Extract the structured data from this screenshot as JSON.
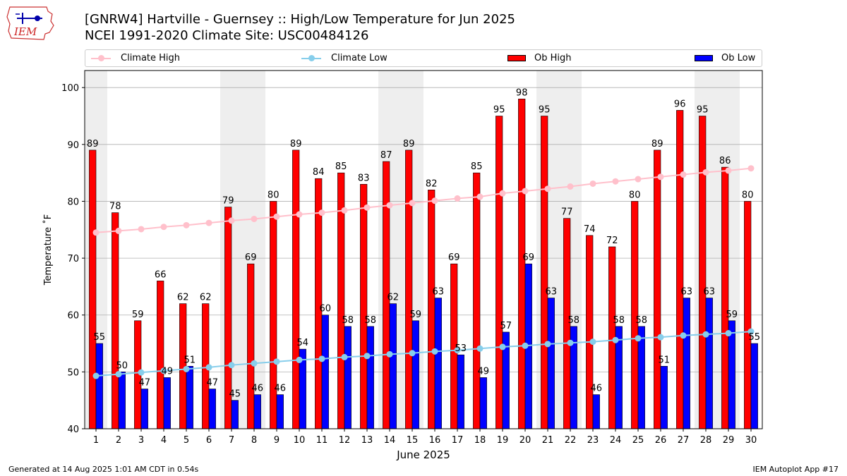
{
  "header": {
    "logo_text": "IEM",
    "title_line1": "[GNRW4] Hartville - Guernsey :: High/Low Temperature for Jun 2025",
    "title_line2": "NCEI 1991-2020 Climate Site: USC00484126"
  },
  "legend": {
    "climate_high": "Climate High",
    "climate_low": "Climate Low",
    "ob_high": "Ob High",
    "ob_low": "Ob Low"
  },
  "colors": {
    "ob_high": "#ff0000",
    "ob_low": "#0000ff",
    "climate_high": "#ffc0cb",
    "climate_low": "#87ceeb",
    "weekend_shade": "#eeeeee",
    "grid": "#b0b0b0"
  },
  "chart_data": {
    "type": "bar",
    "xlabel": "June 2025",
    "ylabel": "Temperature ˚F",
    "ylim": [
      40,
      103
    ],
    "yticks": [
      40,
      50,
      60,
      70,
      80,
      90,
      100
    ],
    "grid": "horizontal",
    "legend_position": "top",
    "categories": [
      "1",
      "2",
      "3",
      "4",
      "5",
      "6",
      "7",
      "8",
      "9",
      "10",
      "11",
      "12",
      "13",
      "14",
      "15",
      "16",
      "17",
      "18",
      "19",
      "20",
      "21",
      "22",
      "23",
      "24",
      "25",
      "26",
      "27",
      "28",
      "29",
      "30"
    ],
    "shaded_categories": [
      "1",
      "7",
      "8",
      "14",
      "15",
      "21",
      "22",
      "28",
      "29"
    ],
    "series": [
      {
        "name": "Ob High",
        "kind": "bar",
        "values": [
          89,
          78,
          59,
          66,
          62,
          62,
          79,
          69,
          80,
          89,
          84,
          85,
          83,
          87,
          89,
          82,
          69,
          85,
          95,
          98,
          95,
          77,
          74,
          72,
          80,
          89,
          96,
          95,
          86,
          80
        ]
      },
      {
        "name": "Ob Low",
        "kind": "bar",
        "values": [
          55,
          50,
          47,
          49,
          51,
          47,
          45,
          46,
          46,
          54,
          60,
          58,
          58,
          62,
          59,
          63,
          53,
          49,
          57,
          69,
          63,
          58,
          46,
          58,
          58,
          51,
          63,
          63,
          59,
          55
        ]
      },
      {
        "name": "Climate High",
        "kind": "line",
        "values": [
          74.5,
          74.8,
          75.1,
          75.5,
          75.8,
          76.2,
          76.6,
          76.9,
          77.3,
          77.7,
          78.0,
          78.4,
          78.9,
          79.3,
          79.7,
          80.1,
          80.5,
          80.8,
          81.4,
          81.8,
          82.2,
          82.6,
          83.1,
          83.5,
          83.9,
          84.3,
          84.7,
          85.1,
          85.4,
          85.8
        ]
      },
      {
        "name": "Climate Low",
        "kind": "line",
        "values": [
          49.3,
          49.6,
          49.9,
          50.2,
          50.5,
          50.8,
          51.2,
          51.5,
          51.8,
          52.1,
          52.3,
          52.6,
          52.8,
          53.1,
          53.3,
          53.6,
          53.8,
          54.1,
          54.4,
          54.6,
          54.9,
          55.1,
          55.3,
          55.6,
          55.9,
          56.1,
          56.4,
          56.6,
          56.8,
          57.1
        ]
      }
    ]
  },
  "footer": {
    "left": "Generated at 14 Aug 2025 1:01 AM CDT in 0.54s",
    "right": "IEM Autoplot App #17"
  }
}
